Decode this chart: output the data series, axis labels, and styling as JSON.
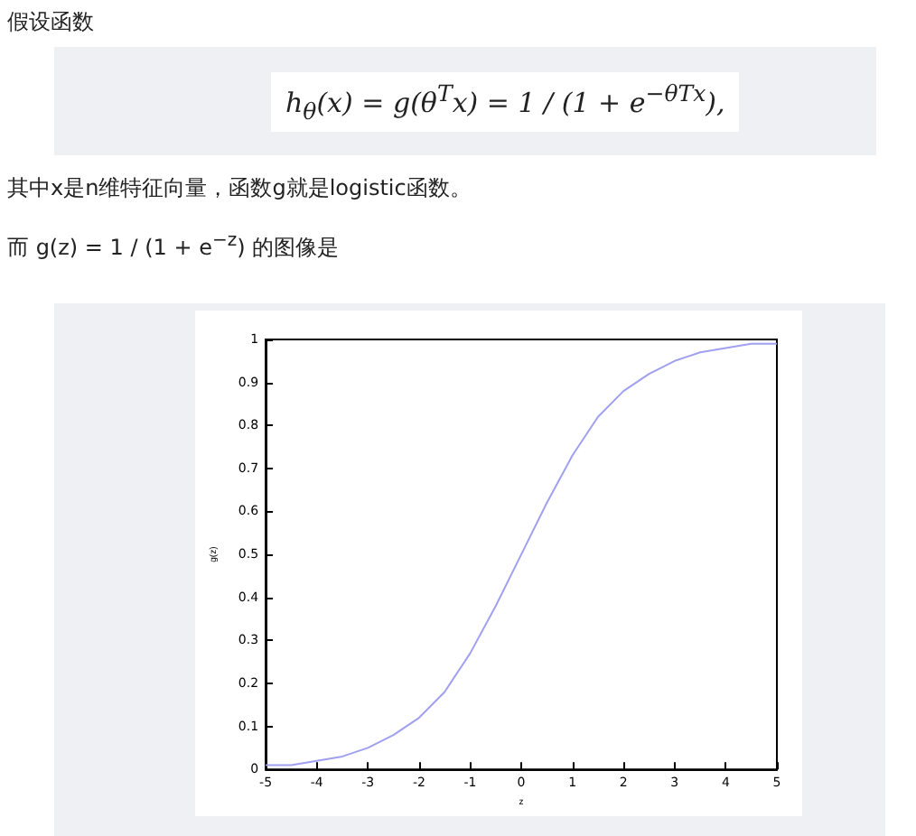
{
  "chart_data": {
    "type": "line",
    "annotations": [
      "假设函数",
      "h$_{θ}$(x) = g(θ$^{T}$x) = 1 / (1 + e$^{−θTx}$),",
      "其中x是n维特征向量，函数g就是logistic函数。",
      "而 g(z) = 1 / (1 + e$^{−z}$) 的图像是"
    ],
    "xlabel": "z",
    "ylabel": "g(z)",
    "x": [
      -5,
      -4.5,
      -4,
      -3.5,
      -3,
      -2.5,
      -2,
      -1.5,
      -1,
      -0.5,
      0,
      0.5,
      1,
      1.5,
      2,
      2.5,
      3,
      3.5,
      4,
      4.5,
      5
    ],
    "series": [
      {
        "color": "#a0a0f0",
        "values": [
          0.01,
          0.01,
          0.02,
          0.03,
          0.05,
          0.08,
          0.12,
          0.18,
          0.27,
          0.38,
          0.5,
          0.62,
          0.73,
          0.82,
          0.88,
          0.92,
          0.95,
          0.97,
          0.98,
          0.99,
          0.99
        ]
      }
    ],
    "xlim": [
      -5,
      5
    ],
    "xticks": [
      -5,
      -4,
      -3,
      -2,
      -1,
      0,
      1,
      2,
      3,
      4,
      5
    ],
    "ylim": [
      0,
      1
    ],
    "yticks": [
      0,
      0.1,
      0.2,
      0.3,
      0.4,
      0.5,
      0.6,
      0.7,
      0.8,
      0.9,
      1
    ],
    "grid": false,
    "marker": "none",
    "line_style": "solid"
  }
}
